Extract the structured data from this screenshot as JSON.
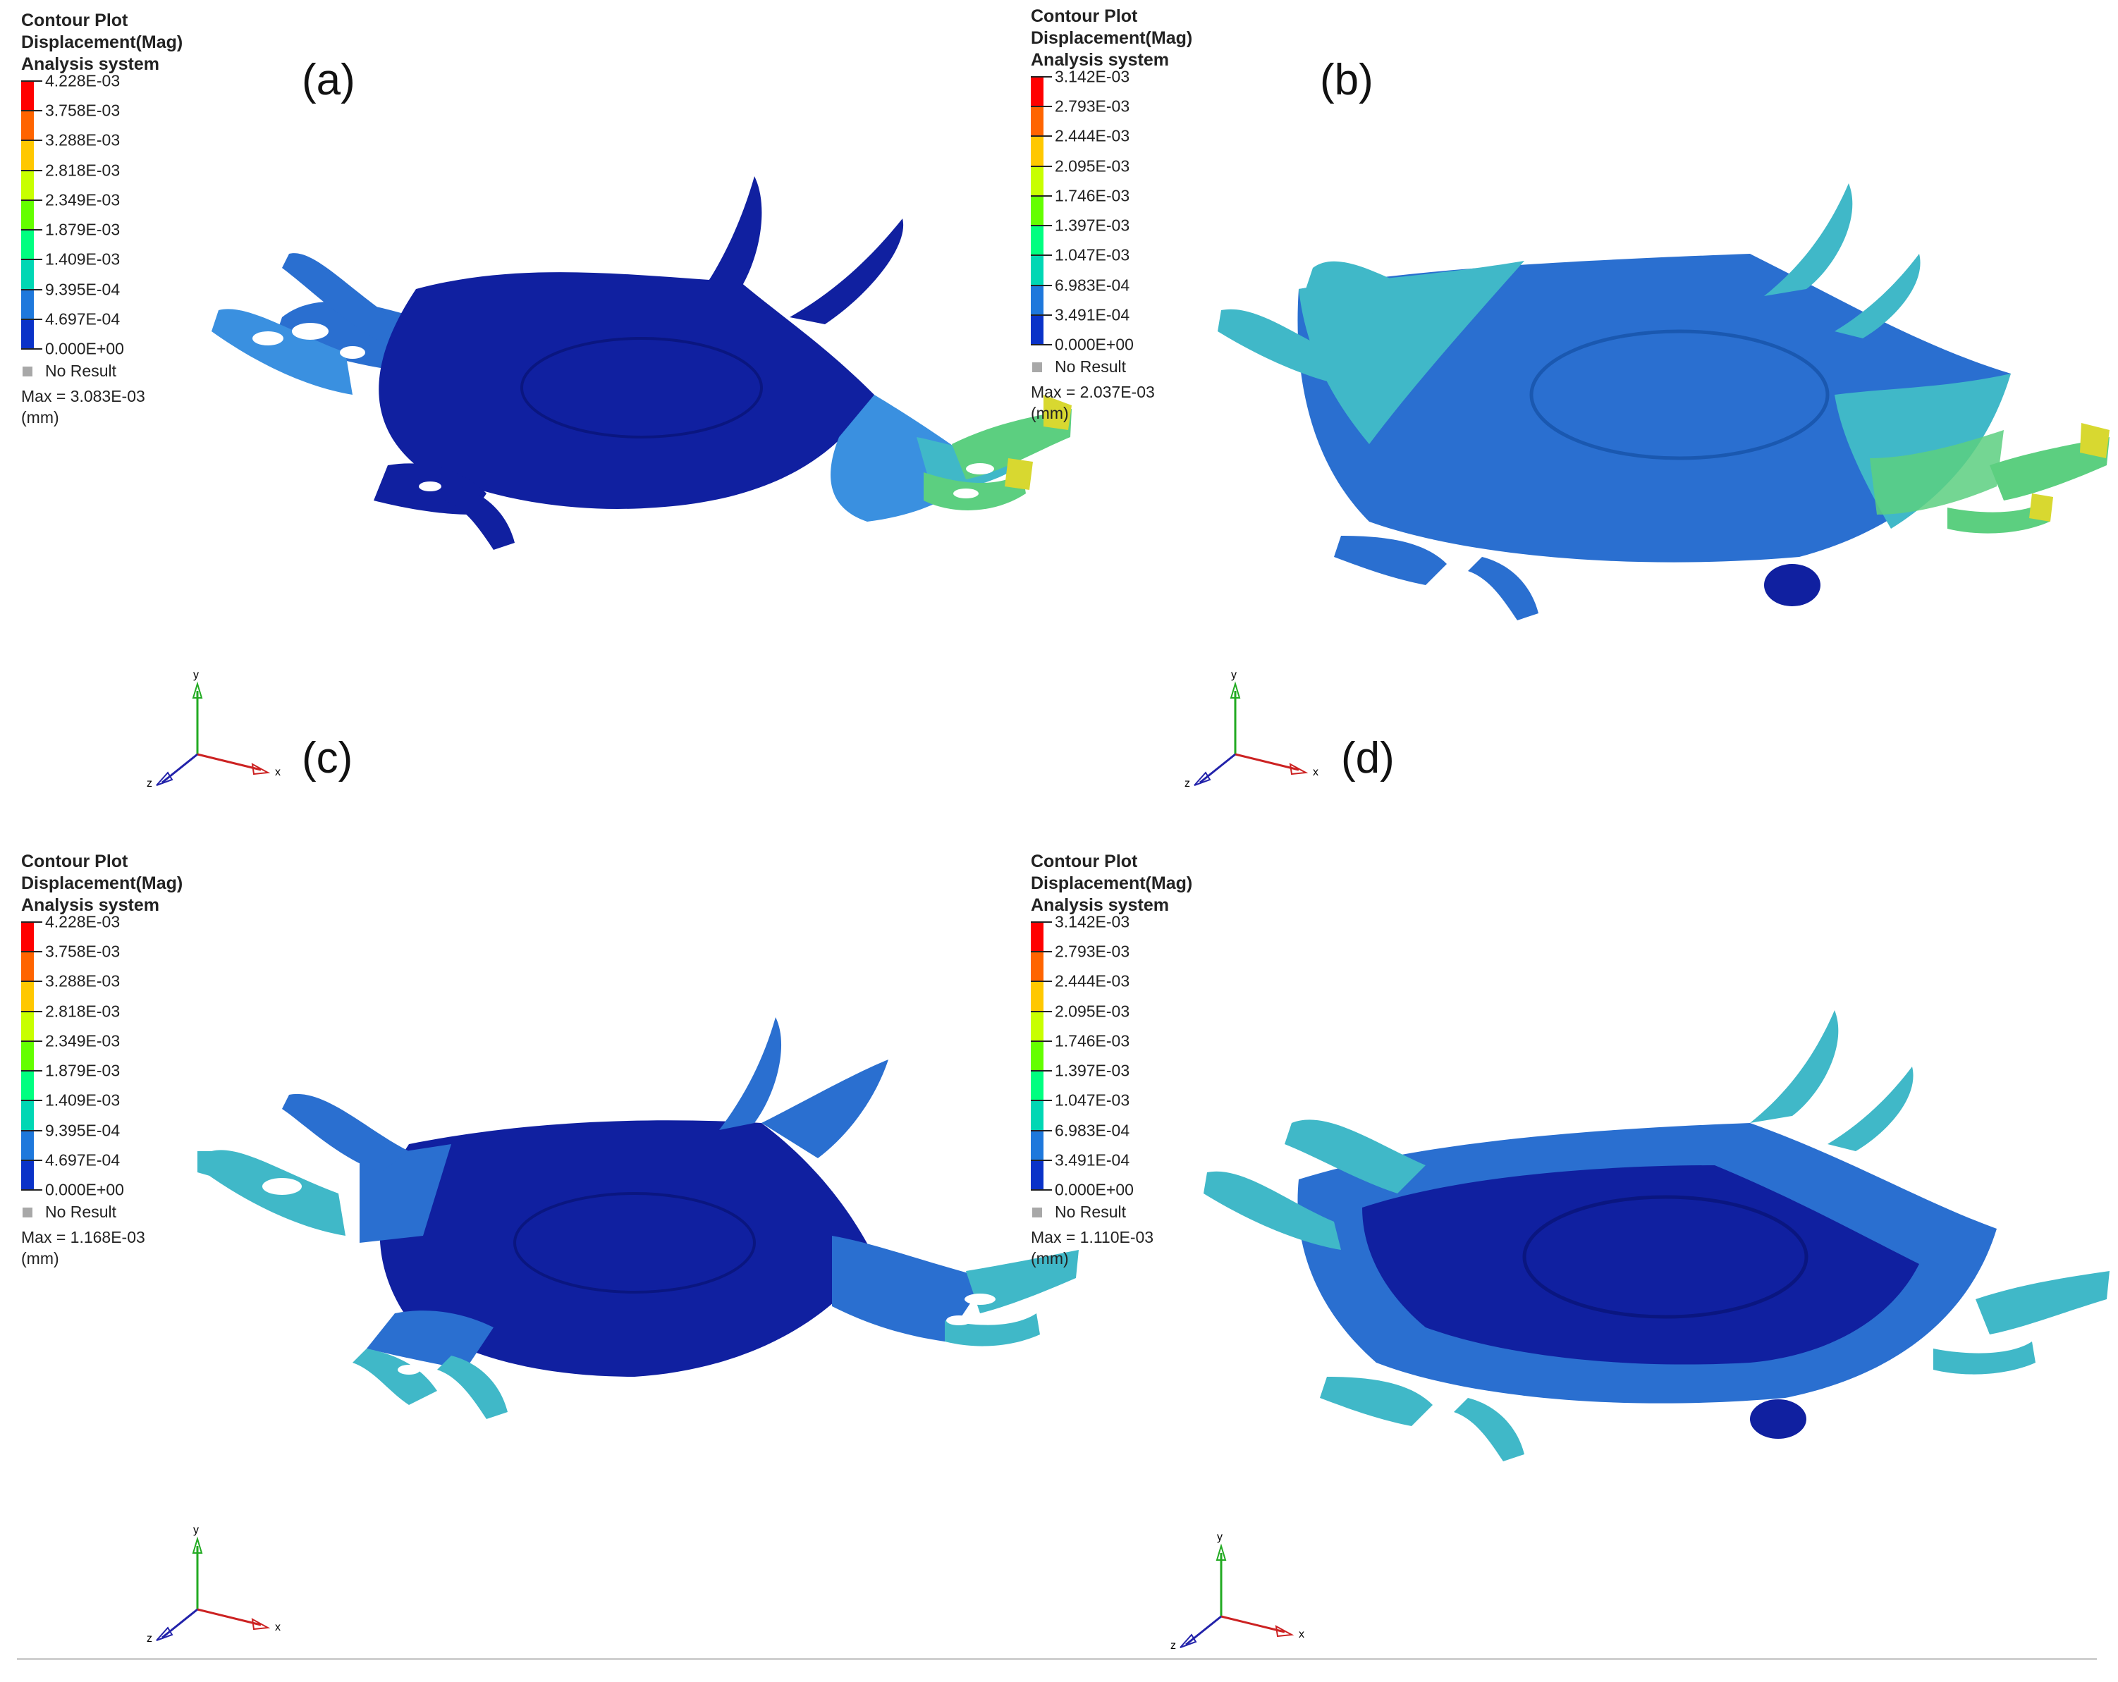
{
  "colors": {
    "bands": [
      "#ff0000",
      "#ff6400",
      "#ffc800",
      "#c8ff00",
      "#64ff00",
      "#00ff80",
      "#00d7b4",
      "#1e78dc",
      "#0a32c8",
      "#00008c"
    ],
    "model": {
      "darkblue": "#1020a0",
      "blue": "#2a6fd0",
      "lightblue": "#3a90e0",
      "cyan": "#40b8c8",
      "green": "#5ccf80",
      "yellow": "#d8d830"
    }
  },
  "panels": [
    {
      "label": "(a)",
      "legend": {
        "title": [
          "Contour Plot",
          "Displacement(Mag)",
          "Analysis system"
        ],
        "values": [
          "4.228E-03",
          "3.758E-03",
          "3.288E-03",
          "2.818E-03",
          "2.349E-03",
          "1.879E-03",
          "1.409E-03",
          "9.395E-04",
          "4.697E-04",
          "0.000E+00"
        ],
        "no_result": "No Result",
        "max": "Max = 3.083E-03",
        "unit": "(mm)"
      },
      "triad": {
        "x": "x",
        "y": "y",
        "z": "z"
      }
    },
    {
      "label": "(b)",
      "legend": {
        "title": [
          "Contour Plot",
          "Displacement(Mag)",
          "Analysis system"
        ],
        "values": [
          "3.142E-03",
          "2.793E-03",
          "2.444E-03",
          "2.095E-03",
          "1.746E-03",
          "1.397E-03",
          "1.047E-03",
          "6.983E-04",
          "3.491E-04",
          "0.000E+00"
        ],
        "no_result": "No Result",
        "max": "Max = 2.037E-03",
        "unit": "(mm)"
      },
      "triad": {
        "x": "x",
        "y": "y",
        "z": "z"
      }
    },
    {
      "label": "(c)",
      "legend": {
        "title": [
          "Contour Plot",
          "Displacement(Mag)",
          "Analysis system"
        ],
        "values": [
          "4.228E-03",
          "3.758E-03",
          "3.288E-03",
          "2.818E-03",
          "2.349E-03",
          "1.879E-03",
          "1.409E-03",
          "9.395E-04",
          "4.697E-04",
          "0.000E+00"
        ],
        "no_result": "No Result",
        "max": "Max = 1.168E-03",
        "unit": "(mm)"
      },
      "triad": {
        "x": "x",
        "y": "y",
        "z": "z"
      }
    },
    {
      "label": "(d)",
      "legend": {
        "title": [
          "Contour Plot",
          "Displacement(Mag)",
          "Analysis system"
        ],
        "values": [
          "3.142E-03",
          "2.793E-03",
          "2.444E-03",
          "2.095E-03",
          "1.746E-03",
          "1.397E-03",
          "1.047E-03",
          "6.983E-04",
          "3.491E-04",
          "0.000E+00"
        ],
        "no_result": "No Result",
        "max": "Max = 1.110E-03",
        "unit": "(mm)"
      },
      "triad": {
        "x": "x",
        "y": "y",
        "z": "z"
      }
    }
  ]
}
